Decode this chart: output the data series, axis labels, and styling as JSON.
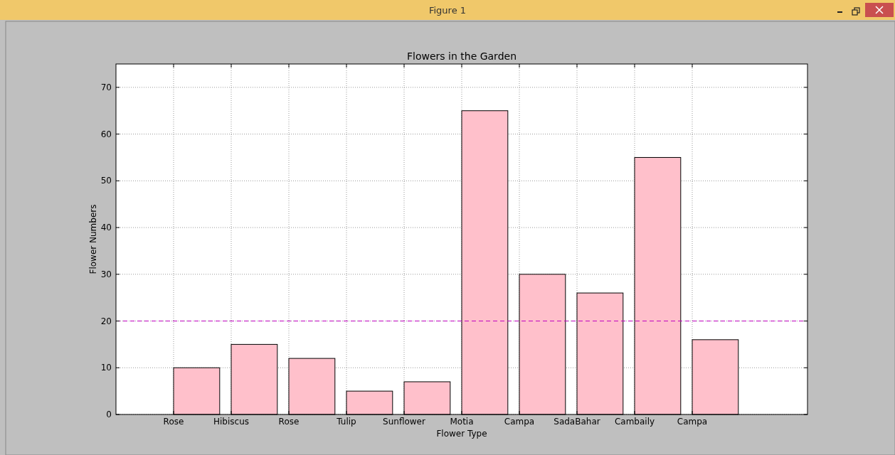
{
  "chart_data": {
    "type": "bar",
    "title": "Flowers in the Garden",
    "xlabel": "Flower Type",
    "ylabel": "Flower Numbers",
    "annotations": [
      "Figure 1"
    ],
    "categories": [
      "Rose",
      "Hibiscus",
      "Rose",
      "Tulip",
      "Sunflower",
      "Motia",
      "Campa",
      "SadaBahar",
      "Cambaily",
      "Campa"
    ],
    "values": [
      10,
      15,
      12,
      5,
      7,
      65,
      30,
      26,
      55,
      16
    ],
    "color": "#ffc0cb",
    "ylim": [
      0,
      75
    ],
    "yticks": [
      0,
      10,
      20,
      30,
      40,
      50,
      60,
      70
    ],
    "grid": true,
    "ref_lines": [
      {
        "axis": "y",
        "value": 20,
        "color": "#bf00bf",
        "line_style": "dashed"
      }
    ]
  }
}
